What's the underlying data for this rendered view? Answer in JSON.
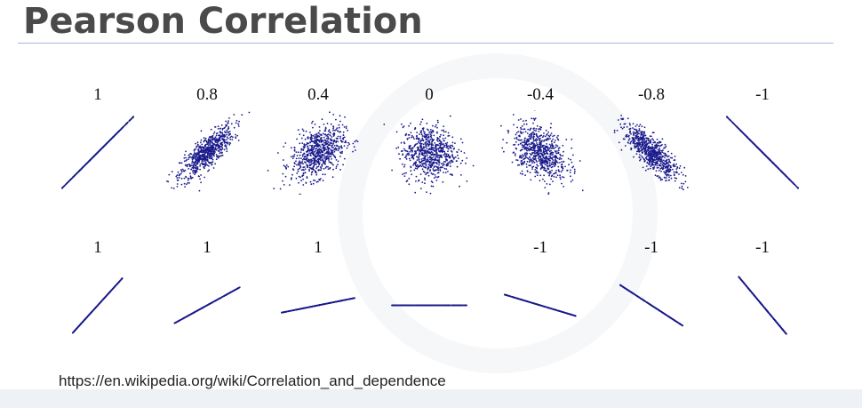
{
  "slide": {
    "title": "Pearson Correlation",
    "source": "https://en.wikipedia.org/wiki/Correlation_and_dependence"
  },
  "colors": {
    "points": "#1a1a8c",
    "title": "#4a4a4a",
    "rule": "#aab4dc"
  },
  "chart_data": [
    {
      "type": "scatter",
      "row": 1,
      "description_free": true,
      "panels": [
        {
          "label": "1",
          "correlation": 1
        },
        {
          "label": "0.8",
          "correlation": 0.8
        },
        {
          "label": "0.4",
          "correlation": 0.4
        },
        {
          "label": "0",
          "correlation": 0
        },
        {
          "label": "-0.4",
          "correlation": -0.4
        },
        {
          "label": "-0.8",
          "correlation": -0.8
        },
        {
          "label": "-1",
          "correlation": -1
        }
      ]
    },
    {
      "type": "scatter",
      "row": 2,
      "panels": [
        {
          "label": "1",
          "correlation": 1,
          "slope": 1.1
        },
        {
          "label": "1",
          "correlation": 1,
          "slope": 0.55
        },
        {
          "label": "1",
          "correlation": 1,
          "slope": 0.2
        },
        {
          "label": "",
          "correlation": 0,
          "slope": 0
        },
        {
          "label": "-1",
          "correlation": -1,
          "slope": -0.3
        },
        {
          "label": "-1",
          "correlation": -1,
          "slope": -0.65
        },
        {
          "label": "-1",
          "correlation": -1,
          "slope": -1.2
        }
      ]
    }
  ]
}
